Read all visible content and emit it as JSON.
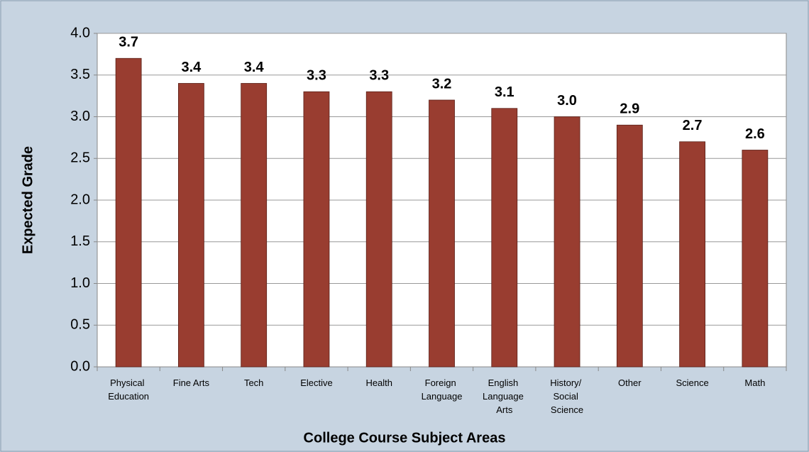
{
  "chart_data": {
    "type": "bar",
    "categories": [
      "Physical Education",
      "Fine Arts",
      "Tech",
      "Elective",
      "Health",
      "Foreign Language",
      "English Language Arts",
      "History/ Social Science",
      "Other",
      "Science",
      "Math"
    ],
    "values": [
      3.7,
      3.4,
      3.4,
      3.3,
      3.3,
      3.2,
      3.1,
      3.0,
      2.9,
      2.7,
      2.6
    ],
    "value_labels": [
      "3.7",
      "3.4",
      "3.4",
      "3.3",
      "3.3",
      "3.2",
      "3.1",
      "3.0",
      "2.9",
      "2.7",
      "2.6"
    ],
    "color": "#993d30",
    "x_label": "College Course Subject Areas",
    "y_label": "Expected Grade",
    "ylim": [
      0,
      4
    ],
    "yticks": [
      {
        "value": 0,
        "label": "0.0"
      },
      0.5,
      {
        "value": 1,
        "label": "1.0"
      },
      1.5,
      {
        "value": 2,
        "label": "2.0"
      },
      2.5,
      {
        "value": 3,
        "label": "3.0"
      },
      3.5,
      {
        "value": 4,
        "label": "4.0"
      }
    ],
    "grid": true
  }
}
